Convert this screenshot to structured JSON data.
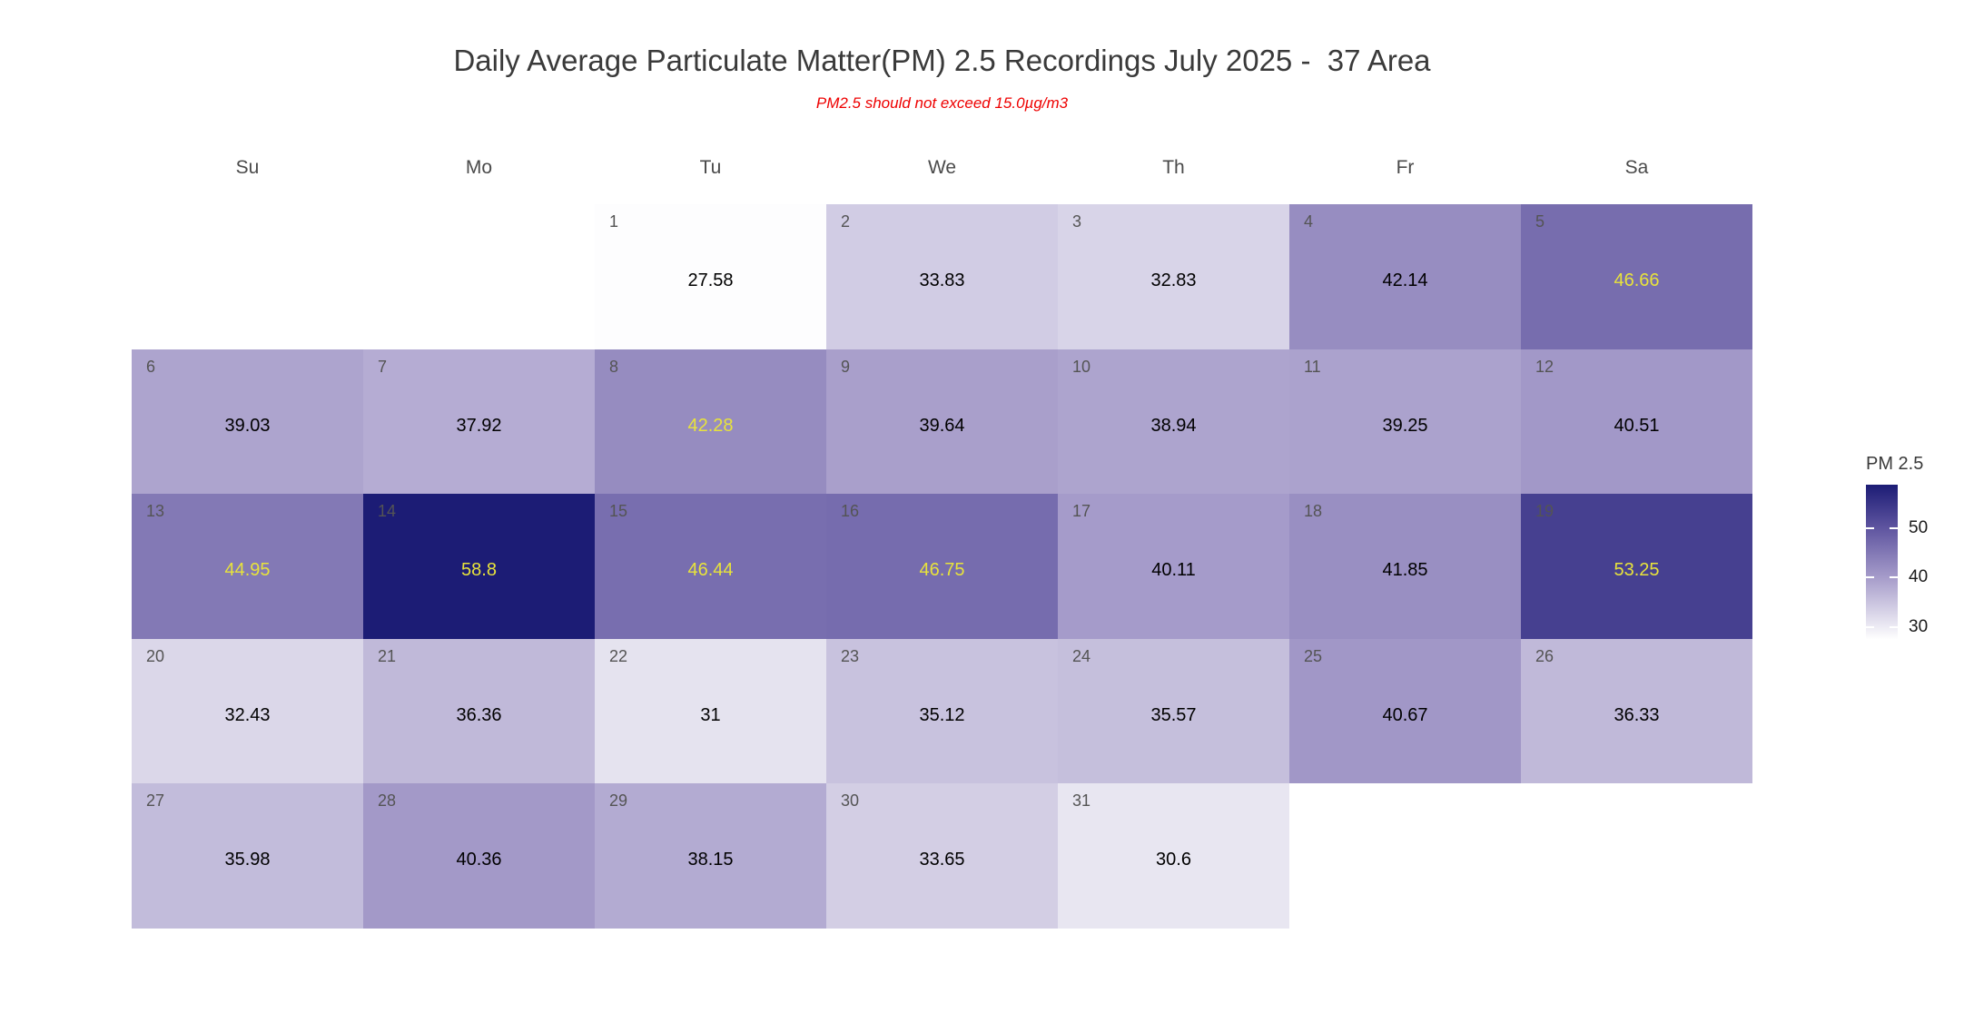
{
  "chart_data": {
    "type": "heatmap",
    "title": "Daily Average Particulate Matter(PM) 2.5 Recordings July 2025 -  37 Area",
    "subtitle": "PM2.5 should not exceed 15.0µg/m3",
    "weekdays": [
      "Su",
      "Mo",
      "Tu",
      "We",
      "Th",
      "Fr",
      "Sa"
    ],
    "legend": {
      "title": "PM 2.5",
      "ticks": [
        50,
        40,
        30
      ]
    },
    "color_scale": {
      "min": 27.58,
      "max": 58.8,
      "stops": [
        [
          27.5,
          "#fefefe"
        ],
        [
          40,
          "#a69cca"
        ],
        [
          50,
          "#5f55a0"
        ],
        [
          58.8,
          "#1c1c75"
        ]
      ]
    },
    "weeks": [
      [
        null,
        null,
        {
          "day": 1,
          "value": 27.58
        },
        {
          "day": 2,
          "value": 33.83
        },
        {
          "day": 3,
          "value": 32.83
        },
        {
          "day": 4,
          "value": 42.14
        },
        {
          "day": 5,
          "value": 46.66,
          "highlight": true
        }
      ],
      [
        {
          "day": 6,
          "value": 39.03
        },
        {
          "day": 7,
          "value": 37.92
        },
        {
          "day": 8,
          "value": 42.28,
          "highlight": true
        },
        {
          "day": 9,
          "value": 39.64
        },
        {
          "day": 10,
          "value": 38.94
        },
        {
          "day": 11,
          "value": 39.25
        },
        {
          "day": 12,
          "value": 40.51
        }
      ],
      [
        {
          "day": 13,
          "value": 44.95,
          "highlight": true
        },
        {
          "day": 14,
          "value": 58.8,
          "highlight": true
        },
        {
          "day": 15,
          "value": 46.44,
          "highlight": true
        },
        {
          "day": 16,
          "value": 46.75,
          "highlight": true
        },
        {
          "day": 17,
          "value": 40.11
        },
        {
          "day": 18,
          "value": 41.85
        },
        {
          "day": 19,
          "value": 53.25,
          "highlight": true
        }
      ],
      [
        {
          "day": 20,
          "value": 32.43
        },
        {
          "day": 21,
          "value": 36.36
        },
        {
          "day": 22,
          "value": 31
        },
        {
          "day": 23,
          "value": 35.12
        },
        {
          "day": 24,
          "value": 35.57
        },
        {
          "day": 25,
          "value": 40.67
        },
        {
          "day": 26,
          "value": 36.33
        }
      ],
      [
        {
          "day": 27,
          "value": 35.98
        },
        {
          "day": 28,
          "value": 40.36
        },
        {
          "day": 29,
          "value": 38.15
        },
        {
          "day": 30,
          "value": 33.65
        },
        {
          "day": 31,
          "value": 30.6
        },
        null,
        null
      ]
    ]
  },
  "colors": {
    "title": "#3a3a3a",
    "subtitle": "#ee0000",
    "weekday_header": "#4a4a4a",
    "day_number": "#545454",
    "value": "#000000",
    "highlight_value": "#e8e33b",
    "background": "#ffffff"
  }
}
